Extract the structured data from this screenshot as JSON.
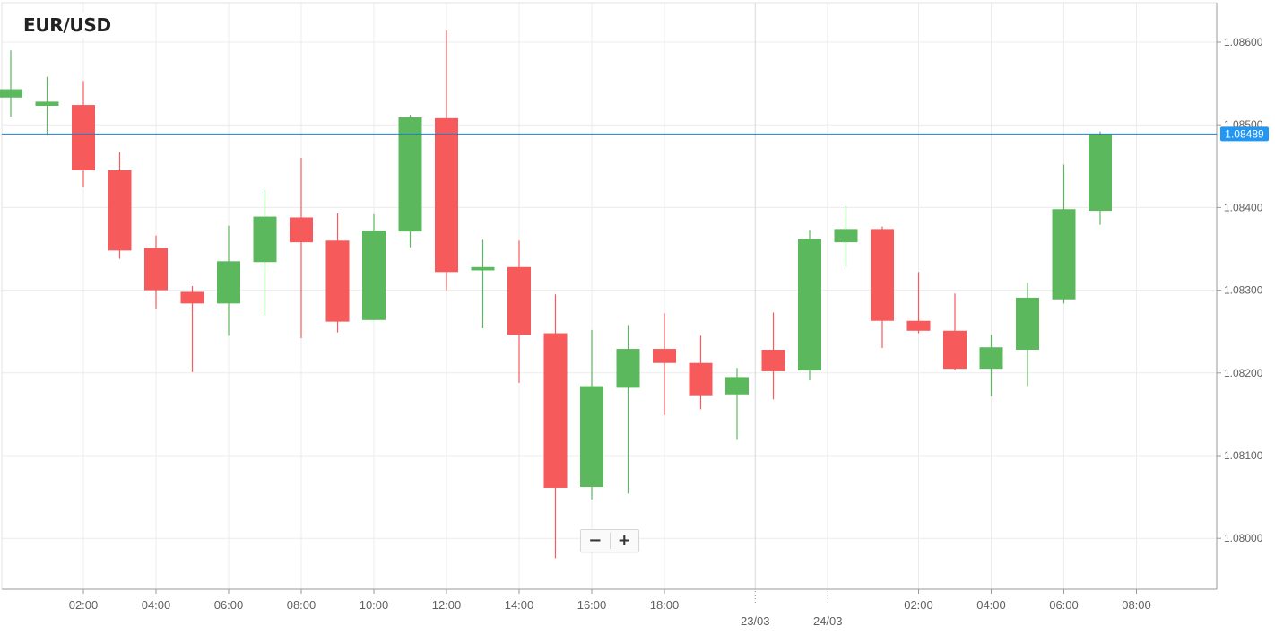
{
  "chart_data": {
    "type": "candlestick",
    "title": "EUR/USD",
    "current_price": 1.08489,
    "ylim": [
      0.0795,
      0.08655
    ],
    "y_offset": 1.0,
    "y_ticks": [
      "1.08000",
      "1.08100",
      "1.08200",
      "1.08300",
      "1.08400",
      "1.08500",
      "1.08600"
    ],
    "x_ticks": [
      "02:00",
      "04:00",
      "06:00",
      "08:00",
      "10:00",
      "12:00",
      "14:00",
      "16:00",
      "18:00",
      "02:00",
      "04:00",
      "06:00",
      "08:00"
    ],
    "date_labels": [
      "23/03",
      "24/03"
    ],
    "candles": [
      {
        "o": 1.08533,
        "h": 1.0859,
        "l": 1.0851,
        "c": 1.08543
      },
      {
        "o": 1.08523,
        "h": 1.08558,
        "l": 1.08487,
        "c": 1.08528
      },
      {
        "o": 1.08524,
        "h": 1.08553,
        "l": 1.08425,
        "c": 1.08445
      },
      {
        "o": 1.08445,
        "h": 1.08467,
        "l": 1.08338,
        "c": 1.08348
      },
      {
        "o": 1.08351,
        "h": 1.08366,
        "l": 1.08278,
        "c": 1.083
      },
      {
        "o": 1.08298,
        "h": 1.08305,
        "l": 1.08201,
        "c": 1.08284
      },
      {
        "o": 1.08284,
        "h": 1.08378,
        "l": 1.08245,
        "c": 1.08335
      },
      {
        "o": 1.08334,
        "h": 1.08421,
        "l": 1.0827,
        "c": 1.08389
      },
      {
        "o": 1.08388,
        "h": 1.0846,
        "l": 1.08242,
        "c": 1.08358
      },
      {
        "o": 1.0836,
        "h": 1.08393,
        "l": 1.08249,
        "c": 1.08262
      },
      {
        "o": 1.08264,
        "h": 1.08392,
        "l": 1.08264,
        "c": 1.08372
      },
      {
        "o": 1.08371,
        "h": 1.08512,
        "l": 1.08352,
        "c": 1.08509
      },
      {
        "o": 1.08508,
        "h": 1.08614,
        "l": 1.083,
        "c": 1.08322
      },
      {
        "o": 1.08324,
        "h": 1.08361,
        "l": 1.08254,
        "c": 1.08328
      },
      {
        "o": 1.08328,
        "h": 1.0836,
        "l": 1.08188,
        "c": 1.08246
      },
      {
        "o": 1.08248,
        "h": 1.08295,
        "l": 1.07976,
        "c": 1.08061
      },
      {
        "o": 1.08062,
        "h": 1.08252,
        "l": 1.08047,
        "c": 1.08184
      },
      {
        "o": 1.08182,
        "h": 1.08258,
        "l": 1.08054,
        "c": 1.08229
      },
      {
        "o": 1.08229,
        "h": 1.08272,
        "l": 1.08149,
        "c": 1.08212
      },
      {
        "o": 1.08212,
        "h": 1.08245,
        "l": 1.08156,
        "c": 1.08173
      },
      {
        "o": 1.08174,
        "h": 1.08206,
        "l": 1.08119,
        "c": 1.08195
      },
      {
        "o": 1.08228,
        "h": 1.08273,
        "l": 1.08168,
        "c": 1.08202
      },
      {
        "o": 1.08203,
        "h": 1.08373,
        "l": 1.08191,
        "c": 1.08362
      },
      {
        "o": 1.08358,
        "h": 1.08402,
        "l": 1.08328,
        "c": 1.08374
      },
      {
        "o": 1.08374,
        "h": 1.08377,
        "l": 1.0823,
        "c": 1.08263
      },
      {
        "o": 1.08263,
        "h": 1.08322,
        "l": 1.08248,
        "c": 1.08251
      },
      {
        "o": 1.08251,
        "h": 1.08296,
        "l": 1.08203,
        "c": 1.08205
      },
      {
        "o": 1.08205,
        "h": 1.08246,
        "l": 1.08172,
        "c": 1.08231
      },
      {
        "o": 1.08228,
        "h": 1.08309,
        "l": 1.08184,
        "c": 1.08291
      },
      {
        "o": 1.08289,
        "h": 1.08452,
        "l": 1.08284,
        "c": 1.08398
      },
      {
        "o": 1.08396,
        "h": 1.08492,
        "l": 1.08379,
        "c": 1.08489
      }
    ],
    "grid": true,
    "colors": {
      "up": "#5cb85c",
      "down": "#f65a5b",
      "price_line": "#1f7fd0",
      "price_label_bg": "#2196f3",
      "grid": "#ececec",
      "axis": "#9a9a9a",
      "tick_text": "#606060"
    }
  },
  "zoom": {
    "minus_label": "−",
    "plus_label": "+"
  }
}
